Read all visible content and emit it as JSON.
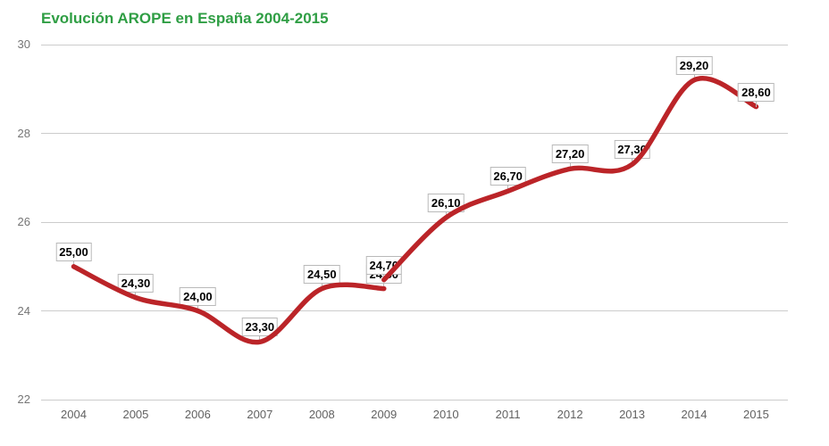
{
  "title": {
    "text": "Evolución AROPE en España 2004-2015",
    "color": "#2f9e44"
  },
  "chart_data": {
    "type": "line",
    "title": "Evolución AROPE en España 2004-2015",
    "xlabel": "",
    "ylabel": "",
    "x_ticks": [
      2004,
      2005,
      2006,
      2007,
      2008,
      2009,
      2010,
      2011,
      2012,
      2013,
      2014,
      2015
    ],
    "y_ticks": [
      22,
      24,
      26,
      28,
      30
    ],
    "ylim": [
      22,
      30
    ],
    "grid": true,
    "legend": "none",
    "line_color": "#bb2428",
    "curve": "smooth",
    "series": [
      {
        "points": [
          [
            2004,
            25.0
          ],
          [
            2005,
            24.3
          ],
          [
            2006,
            24.0
          ],
          [
            2007,
            23.3
          ],
          [
            2008,
            24.5
          ],
          [
            2009,
            24.5
          ]
        ]
      },
      {
        "points": [
          [
            2009,
            24.7
          ],
          [
            2010,
            26.1
          ],
          [
            2011,
            26.7
          ],
          [
            2012,
            27.2
          ],
          [
            2013,
            27.3
          ],
          [
            2014,
            29.2
          ],
          [
            2015,
            28.6
          ]
        ]
      }
    ],
    "annotations": [
      {
        "series": 0,
        "year": 2004,
        "value": 25.0,
        "label": "25,00"
      },
      {
        "series": 0,
        "year": 2005,
        "value": 24.3,
        "label": "24,30"
      },
      {
        "series": 0,
        "year": 2006,
        "value": 24.0,
        "label": "24,00"
      },
      {
        "series": 0,
        "year": 2007,
        "value": 23.3,
        "label": "23,30"
      },
      {
        "series": 0,
        "year": 2008,
        "value": 24.5,
        "label": "24,50"
      },
      {
        "series": 0,
        "year": 2009,
        "value": 24.5,
        "label": "24,50"
      },
      {
        "series": 1,
        "year": 2009,
        "value": 24.7,
        "label": "24,70"
      },
      {
        "series": 1,
        "year": 2010,
        "value": 26.1,
        "label": "26,10"
      },
      {
        "series": 1,
        "year": 2011,
        "value": 26.7,
        "label": "26,70"
      },
      {
        "series": 1,
        "year": 2012,
        "value": 27.2,
        "label": "27,20"
      },
      {
        "series": 1,
        "year": 2013,
        "value": 27.3,
        "label": "27,30"
      },
      {
        "series": 1,
        "year": 2014,
        "value": 29.2,
        "label": "29,20"
      },
      {
        "series": 1,
        "year": 2015,
        "value": 28.6,
        "label": "28,60",
        "above_line": true
      }
    ]
  }
}
